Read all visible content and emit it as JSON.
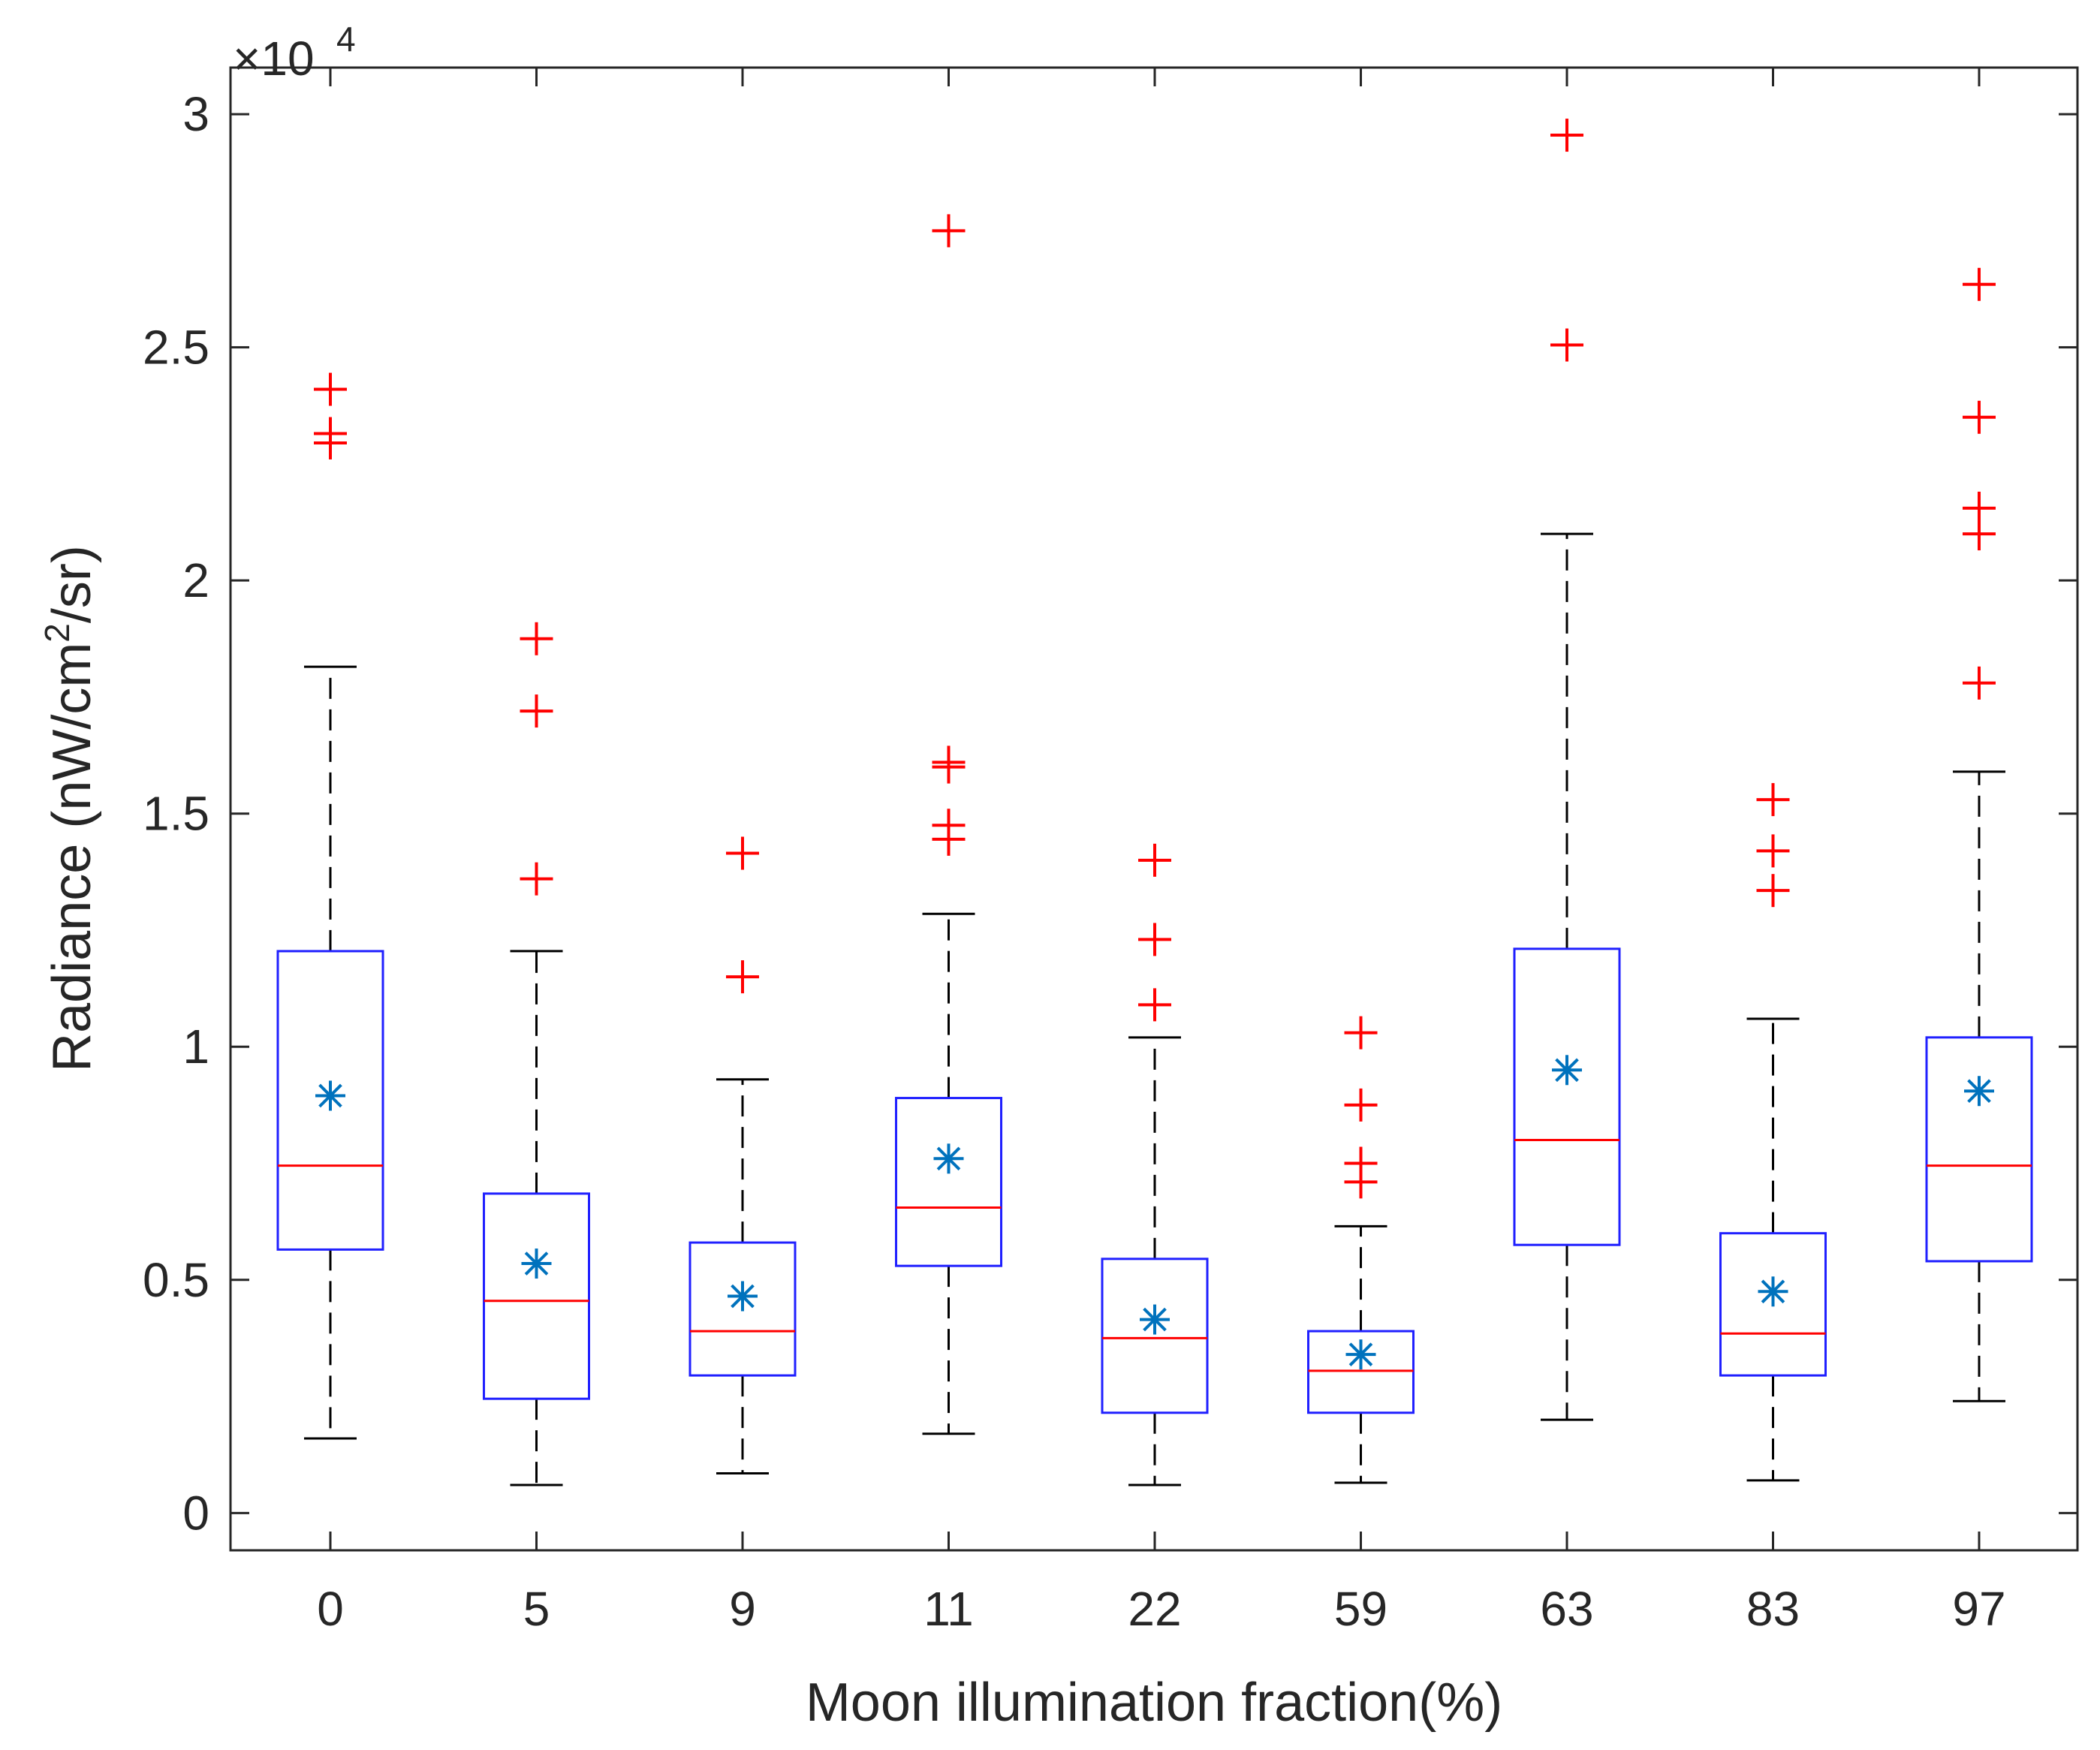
{
  "chart_data": {
    "type": "box",
    "title": "",
    "xlabel": "Moon illumination fraction(%)",
    "ylabel_main": "Radiance (nW/cm",
    "ylabel_sup": "2",
    "ylabel_tail": "/sr)",
    "exponent_prefix": "×10",
    "exponent_power": "4",
    "scale": 10000,
    "ylim": [
      -0.08,
      3.1
    ],
    "yticks": [
      0,
      0.5,
      1,
      1.5,
      2,
      2.5,
      3
    ],
    "ytick_labels": [
      "0",
      "0.5",
      "1",
      "1.5",
      "2",
      "2.5",
      "3"
    ],
    "categories": [
      "0",
      "5",
      "9",
      "11",
      "22",
      "59",
      "63",
      "83",
      "97"
    ],
    "groups": [
      {
        "category": "0",
        "whisker_low": 0.16,
        "q1": 0.565,
        "median": 0.745,
        "q3": 1.205,
        "whisker_high": 1.815,
        "mean": 0.895,
        "outliers": [
          2.41,
          2.315,
          2.295
        ]
      },
      {
        "category": "5",
        "whisker_low": 0.06,
        "q1": 0.245,
        "median": 0.455,
        "q3": 0.685,
        "whisker_high": 1.205,
        "mean": 0.535,
        "outliers": [
          1.875,
          1.72,
          1.36
        ]
      },
      {
        "category": "9",
        "whisker_low": 0.085,
        "q1": 0.295,
        "median": 0.39,
        "q3": 0.58,
        "whisker_high": 0.93,
        "mean": 0.465,
        "outliers": [
          1.415,
          1.15
        ]
      },
      {
        "category": "11",
        "whisker_low": 0.17,
        "q1": 0.53,
        "median": 0.655,
        "q3": 0.89,
        "whisker_high": 1.285,
        "mean": 0.76,
        "outliers": [
          2.75,
          1.61,
          1.6,
          1.475,
          1.445
        ]
      },
      {
        "category": "22",
        "whisker_low": 0.06,
        "q1": 0.215,
        "median": 0.375,
        "q3": 0.545,
        "whisker_high": 1.02,
        "mean": 0.415,
        "outliers": [
          1.4,
          1.23,
          1.09
        ]
      },
      {
        "category": "59",
        "whisker_low": 0.065,
        "q1": 0.215,
        "median": 0.305,
        "q3": 0.39,
        "whisker_high": 0.615,
        "mean": 0.34,
        "outliers": [
          1.03,
          0.875,
          0.75,
          0.71
        ]
      },
      {
        "category": "63",
        "whisker_low": 0.2,
        "q1": 0.575,
        "median": 0.8,
        "q3": 1.21,
        "whisker_high": 2.1,
        "mean": 0.95,
        "outliers": [
          2.955,
          2.505
        ]
      },
      {
        "category": "83",
        "whisker_low": 0.07,
        "q1": 0.295,
        "median": 0.385,
        "q3": 0.6,
        "whisker_high": 1.06,
        "mean": 0.475,
        "outliers": [
          1.53,
          1.42,
          1.335
        ]
      },
      {
        "category": "97",
        "whisker_low": 0.24,
        "q1": 0.54,
        "median": 0.745,
        "q3": 1.02,
        "whisker_high": 1.59,
        "mean": 0.905,
        "outliers": [
          2.635,
          2.35,
          2.155,
          2.1,
          1.78
        ]
      }
    ],
    "colors": {
      "box": "#2020ff",
      "median": "#ff0000",
      "outlier": "#ff0000",
      "mean": "#0072bd",
      "whisker": "#000000",
      "axis": "#262626"
    }
  }
}
